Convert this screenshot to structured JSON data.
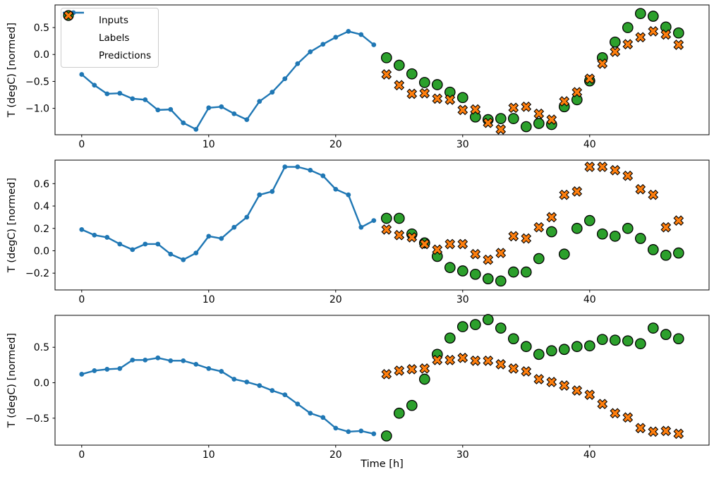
{
  "figure": {
    "y_axis_label": "T (degC) [normed]",
    "x_axis_label": "Time [h]",
    "background": "#ffffff",
    "colors": {
      "inputs": "#1f77b4",
      "labels": "#2ca02c",
      "predictions": "#ff7f0e",
      "marker_edge": "#000000",
      "axis": "#000000",
      "legend_border": "#cccccc"
    }
  },
  "legend": {
    "position": "upper-left",
    "items": [
      {
        "label": "Inputs",
        "marker": "line-dot",
        "color": "#1f77b4"
      },
      {
        "label": "Labels",
        "marker": "circle",
        "color": "#2ca02c"
      },
      {
        "label": "Predictions",
        "marker": "x",
        "color": "#ff7f0e"
      }
    ]
  },
  "chart_data": [
    {
      "type": "line",
      "panel": 1,
      "title": "",
      "xlabel": "",
      "ylabel": "T (degC) [normed]",
      "xlim": [
        -2.1,
        49.4
      ],
      "ylim": [
        -1.49,
        0.92
      ],
      "xticks": [
        0,
        10,
        20,
        30,
        40
      ],
      "yticks": [
        0.5,
        0.0,
        -0.5,
        -1.0
      ],
      "grid": false,
      "series": [
        {
          "name": "Inputs",
          "marker": "dot",
          "color": "#1f77b4",
          "x": [
            0,
            1,
            2,
            3,
            4,
            5,
            6,
            7,
            8,
            9,
            10,
            11,
            12,
            13,
            14,
            15,
            16,
            17,
            18,
            19,
            20,
            21,
            22,
            23
          ],
          "values": [
            -0.37,
            -0.57,
            -0.73,
            -0.72,
            -0.82,
            -0.84,
            -1.03,
            -1.02,
            -1.27,
            -1.39,
            -0.99,
            -0.97,
            -1.1,
            -1.21,
            -0.87,
            -0.7,
            -0.45,
            -0.17,
            0.05,
            0.19,
            0.32,
            0.43,
            0.37,
            0.18
          ]
        },
        {
          "name": "Labels",
          "marker": "circle",
          "color": "#2ca02c",
          "x": [
            24,
            25,
            26,
            27,
            28,
            29,
            30,
            31,
            32,
            33,
            34,
            35,
            36,
            37,
            38,
            39,
            40,
            41,
            42,
            43,
            44,
            45,
            46,
            47
          ],
          "values": [
            -0.06,
            -0.2,
            -0.36,
            -0.52,
            -0.56,
            -0.7,
            -0.8,
            -1.16,
            -1.21,
            -1.19,
            -1.19,
            -1.34,
            -1.28,
            -1.3,
            -0.97,
            -0.84,
            -0.49,
            -0.06,
            0.23,
            0.5,
            0.76,
            0.71,
            0.51,
            0.4
          ]
        },
        {
          "name": "Predictions",
          "marker": "x",
          "color": "#ff7f0e",
          "x": [
            24,
            25,
            26,
            27,
            28,
            29,
            30,
            31,
            32,
            33,
            34,
            35,
            36,
            37,
            38,
            39,
            40,
            41,
            42,
            43,
            44,
            45,
            46,
            47
          ],
          "values": [
            -0.37,
            -0.57,
            -0.73,
            -0.72,
            -0.82,
            -0.84,
            -1.03,
            -1.02,
            -1.27,
            -1.39,
            -0.99,
            -0.97,
            -1.1,
            -1.21,
            -0.87,
            -0.7,
            -0.45,
            -0.17,
            0.05,
            0.19,
            0.32,
            0.43,
            0.37,
            0.18
          ]
        }
      ]
    },
    {
      "type": "line",
      "panel": 2,
      "title": "",
      "xlabel": "",
      "ylabel": "T (degC) [normed]",
      "xlim": [
        -2.1,
        49.4
      ],
      "ylim": [
        -0.35,
        0.81
      ],
      "xticks": [
        0,
        10,
        20,
        30,
        40
      ],
      "yticks": [
        0.6,
        0.4,
        0.2,
        0.0,
        -0.2
      ],
      "grid": false,
      "series": [
        {
          "name": "Inputs",
          "marker": "dot",
          "color": "#1f77b4",
          "x": [
            0,
            1,
            2,
            3,
            4,
            5,
            6,
            7,
            8,
            9,
            10,
            11,
            12,
            13,
            14,
            15,
            16,
            17,
            18,
            19,
            20,
            21,
            22,
            23
          ],
          "values": [
            0.19,
            0.14,
            0.12,
            0.06,
            0.01,
            0.06,
            0.06,
            -0.03,
            -0.08,
            -0.02,
            0.13,
            0.11,
            0.21,
            0.3,
            0.5,
            0.53,
            0.75,
            0.75,
            0.72,
            0.67,
            0.55,
            0.5,
            0.21,
            0.27
          ]
        },
        {
          "name": "Labels",
          "marker": "circle",
          "color": "#2ca02c",
          "x": [
            24,
            25,
            26,
            27,
            28,
            29,
            30,
            31,
            32,
            33,
            34,
            35,
            36,
            37,
            38,
            39,
            40,
            41,
            42,
            43,
            44,
            45,
            46,
            47
          ],
          "values": [
            0.29,
            0.29,
            0.15,
            0.07,
            -0.05,
            -0.15,
            -0.18,
            -0.21,
            -0.25,
            -0.27,
            -0.19,
            -0.19,
            -0.07,
            0.17,
            -0.03,
            0.2,
            0.27,
            0.15,
            0.13,
            0.2,
            0.11,
            0.01,
            -0.04,
            -0.02
          ]
        },
        {
          "name": "Predictions",
          "marker": "x",
          "color": "#ff7f0e",
          "x": [
            24,
            25,
            26,
            27,
            28,
            29,
            30,
            31,
            32,
            33,
            34,
            35,
            36,
            37,
            38,
            39,
            40,
            41,
            42,
            43,
            44,
            45,
            46,
            47
          ],
          "values": [
            0.19,
            0.14,
            0.12,
            0.06,
            0.01,
            0.06,
            0.06,
            -0.03,
            -0.08,
            -0.02,
            0.13,
            0.11,
            0.21,
            0.3,
            0.5,
            0.53,
            0.75,
            0.75,
            0.72,
            0.67,
            0.55,
            0.5,
            0.21,
            0.27
          ]
        }
      ]
    },
    {
      "type": "line",
      "panel": 3,
      "title": "",
      "xlabel": "Time [h]",
      "ylabel": "T (degC) [normed]",
      "xlim": [
        -2.1,
        49.4
      ],
      "ylim": [
        -0.88,
        0.95
      ],
      "xticks": [
        0,
        10,
        20,
        30,
        40
      ],
      "yticks": [
        0.5,
        0.0,
        -0.5
      ],
      "grid": false,
      "series": [
        {
          "name": "Inputs",
          "marker": "dot",
          "color": "#1f77b4",
          "x": [
            0,
            1,
            2,
            3,
            4,
            5,
            6,
            7,
            8,
            9,
            10,
            11,
            12,
            13,
            14,
            15,
            16,
            17,
            18,
            19,
            20,
            21,
            22,
            23
          ],
          "values": [
            0.12,
            0.17,
            0.19,
            0.2,
            0.32,
            0.32,
            0.35,
            0.31,
            0.31,
            0.26,
            0.2,
            0.16,
            0.05,
            0.01,
            -0.04,
            -0.11,
            -0.17,
            -0.3,
            -0.43,
            -0.49,
            -0.64,
            -0.69,
            -0.68,
            -0.72
          ]
        },
        {
          "name": "Labels",
          "marker": "circle",
          "color": "#2ca02c",
          "x": [
            24,
            25,
            26,
            27,
            28,
            29,
            30,
            31,
            32,
            33,
            34,
            35,
            36,
            37,
            38,
            39,
            40,
            41,
            42,
            43,
            44,
            45,
            46,
            47
          ],
          "values": [
            -0.75,
            -0.43,
            -0.32,
            0.05,
            0.4,
            0.63,
            0.79,
            0.82,
            0.89,
            0.77,
            0.62,
            0.51,
            0.4,
            0.45,
            0.47,
            0.51,
            0.52,
            0.61,
            0.6,
            0.59,
            0.55,
            0.77,
            0.68,
            0.62
          ]
        },
        {
          "name": "Predictions",
          "marker": "x",
          "color": "#ff7f0e",
          "x": [
            24,
            25,
            26,
            27,
            28,
            29,
            30,
            31,
            32,
            33,
            34,
            35,
            36,
            37,
            38,
            39,
            40,
            41,
            42,
            43,
            44,
            45,
            46,
            47
          ],
          "values": [
            0.12,
            0.17,
            0.19,
            0.2,
            0.32,
            0.32,
            0.35,
            0.31,
            0.31,
            0.26,
            0.2,
            0.16,
            0.05,
            0.01,
            -0.04,
            -0.11,
            -0.17,
            -0.3,
            -0.43,
            -0.49,
            -0.64,
            -0.69,
            -0.68,
            -0.72
          ]
        }
      ]
    }
  ]
}
